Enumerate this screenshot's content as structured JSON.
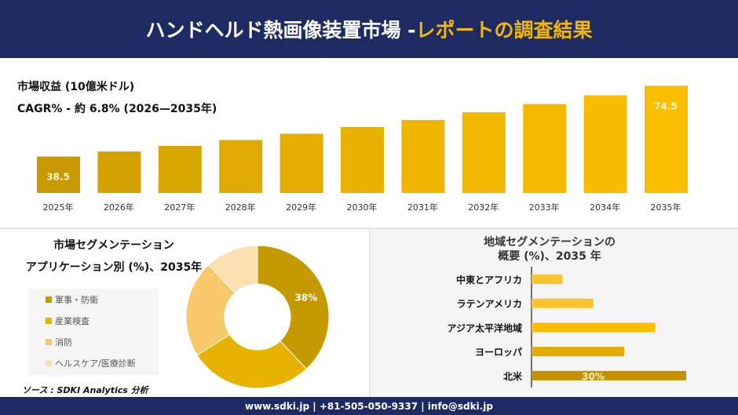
{
  "header": {
    "title_main": "ハンドヘルド熱画像装置市場 -",
    "title_accent": "レポートの調査結果"
  },
  "revenue": {
    "title": "市場収益 (10億米ドル)",
    "cagr": "CAGR% - 約 6.8% (2026—2035年)"
  },
  "segment": {
    "title1": "市場セグメンテーション",
    "title2": "アプリケーション別 (%)、2035年"
  },
  "region": {
    "title1": "地域セグメンテーションの",
    "title2": "概要 (%)、2035 年"
  },
  "source": "ソース : SDKI Analytics 分析",
  "footer": "www.sdki.jp | +81-505-050-9337 | info@sdki.jp",
  "colors": {
    "navy": "#1e2b63",
    "accent": "#f5b800"
  },
  "chart_data": [
    {
      "type": "bar",
      "categories": [
        "2025年",
        "2026年",
        "2027年",
        "2028年",
        "2029年",
        "2030年",
        "2031年",
        "2032年",
        "2033年",
        "2034年",
        "2035年"
      ],
      "values": [
        38.5,
        41.1,
        43.9,
        46.9,
        50.1,
        53.5,
        57.1,
        61.0,
        65.2,
        69.6,
        74.5
      ],
      "data_labels": {
        "0": "38.5",
        "10": "74.5"
      },
      "ylim": [
        20,
        75
      ],
      "grid": false
    },
    {
      "type": "pie",
      "donut": true,
      "categories": [
        "軍事・防衛",
        "産業検査",
        "消防",
        "ヘルスケア/医療診断"
      ],
      "values": [
        38,
        28,
        22,
        12
      ],
      "data_labels": {
        "0": "38%"
      },
      "colors": [
        "#c49a00",
        "#e8b300",
        "#f8c96a",
        "#fde0b0"
      ],
      "legend": "left"
    },
    {
      "type": "bar",
      "orientation": "horizontal",
      "categories": [
        "中東とアフリカ",
        "ラテンアメリカ",
        "アジア太平洋地域",
        "ヨーロッパ",
        "北米"
      ],
      "values": [
        6,
        12,
        24,
        18,
        30
      ],
      "data_labels": {
        "4": "30%"
      },
      "colors": [
        "#fcc52e",
        "#fcc52e",
        "#fcbe00",
        "#e2ad00",
        "#c49000"
      ]
    }
  ]
}
